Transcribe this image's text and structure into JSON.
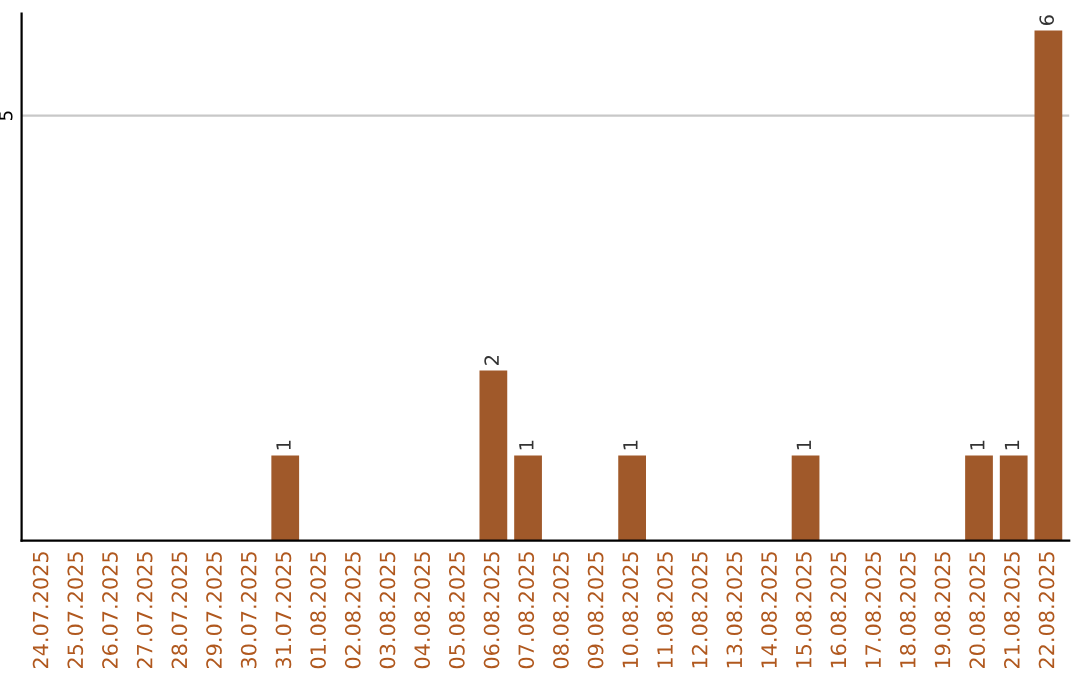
{
  "chart_data": {
    "type": "bar",
    "categories": [
      "24.07.2025",
      "25.07.2025",
      "26.07.2025",
      "27.07.2025",
      "28.07.2025",
      "29.07.2025",
      "30.07.2025",
      "31.07.2025",
      "01.08.2025",
      "02.08.2025",
      "03.08.2025",
      "04.08.2025",
      "05.08.2025",
      "06.08.2025",
      "07.08.2025",
      "08.08.2025",
      "09.08.2025",
      "10.08.2025",
      "11.08.2025",
      "12.08.2025",
      "13.08.2025",
      "14.08.2025",
      "15.08.2025",
      "16.08.2025",
      "17.08.2025",
      "18.08.2025",
      "19.08.2025",
      "20.08.2025",
      "21.08.2025",
      "22.08.2025"
    ],
    "values": [
      0,
      0,
      0,
      0,
      0,
      0,
      0,
      1,
      0,
      0,
      0,
      0,
      0,
      2,
      1,
      0,
      0,
      1,
      0,
      0,
      0,
      0,
      1,
      0,
      0,
      0,
      0,
      1,
      1,
      6
    ],
    "value_labels": [
      null,
      null,
      null,
      null,
      null,
      null,
      null,
      "1",
      null,
      null,
      null,
      null,
      null,
      "2",
      "1",
      null,
      null,
      "1",
      null,
      null,
      null,
      null,
      "1",
      null,
      null,
      null,
      null,
      "1",
      "1",
      "6"
    ],
    "color": "#a0592a",
    "ylim": [
      0,
      6.2
    ],
    "yticks": [
      5
    ],
    "grid": "y"
  }
}
